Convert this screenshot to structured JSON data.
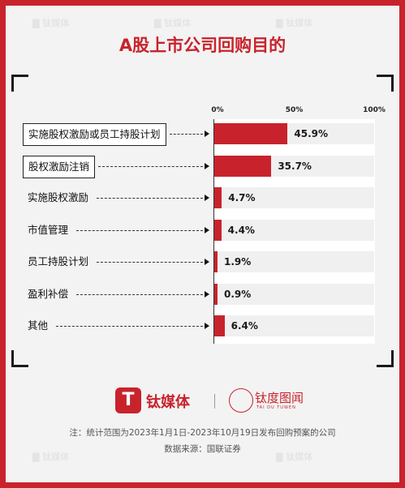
{
  "page": {
    "title": "A股上市公司回购目的",
    "brand_primary": "钛媒体",
    "brand_secondary": "钛度图闻",
    "brand_secondary_en": "TAI DU TUWEN",
    "note": "注：统计范围为2023年1月1日-2023年10月19日发布回购预案的公司",
    "source": "数据来源：国联证券",
    "accent_color": "#c8232c"
  },
  "chart_data": {
    "type": "bar",
    "orientation": "horizontal",
    "title": "A股上市公司回购目的",
    "categories": [
      "实施股权激励或员工持股计划",
      "股权激励注销",
      "实施股权激励",
      "市值管理",
      "员工持股计划",
      "盈利补偿",
      "其他"
    ],
    "values": [
      45.9,
      35.7,
      4.7,
      4.4,
      1.9,
      0.9,
      6.4
    ],
    "value_labels": [
      "45.9%",
      "35.7%",
      "4.7%",
      "4.4%",
      "1.9%",
      "0.9%",
      "6.4%"
    ],
    "xlim": [
      0,
      100
    ],
    "ticks": [
      "0%",
      "50%",
      "100%"
    ],
    "unit": "%",
    "bar_color": "#c8232c"
  }
}
